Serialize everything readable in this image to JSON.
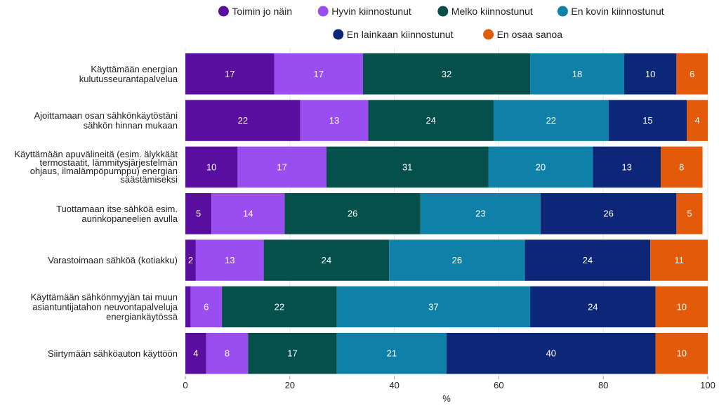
{
  "chart_data": {
    "type": "bar",
    "orientation": "horizontal",
    "stacked": true,
    "title": "",
    "xlabel": "%",
    "ylabel": "",
    "xlim": [
      0,
      100
    ],
    "xticks": [
      0,
      20,
      40,
      60,
      80,
      100
    ],
    "grid": true,
    "legend_position": "top",
    "categories": [
      [
        "Käyttämään energian",
        "kulutusseurantapalvelua"
      ],
      [
        "Ajoittamaan osan sähkönkäytöstäni",
        "sähkön hinnan mukaan"
      ],
      [
        "Käyttämään apuvälineitä (esim. älykkäät",
        "termostaatit, lämmitysjärjestelmän",
        "ohjaus, ilmalämpöpumppu) energian",
        "säästämiseksi"
      ],
      [
        "Tuottamaan itse sähköä esim.",
        "aurinkopaneelien avulla"
      ],
      [
        "Varastoimaan sähköä (kotiakku)"
      ],
      [
        "Käyttämään sähkönmyyjän tai muun",
        "asiantuntijatahon neuvontapalveluja",
        "energiankäytössä"
      ],
      [
        "Siirtymään sähköauton käyttöön"
      ]
    ],
    "series": [
      {
        "name": "Toimin jo näin",
        "color": "#5a0ea0",
        "text_color": "#ffffff",
        "values": [
          17,
          22,
          10,
          5,
          2,
          1,
          4
        ],
        "labels": [
          "17",
          "22",
          "10",
          "5",
          "2",
          "",
          "4"
        ]
      },
      {
        "name": "Hyvin kiinnostunut",
        "color": "#9b4ef0",
        "text_color": "#ffffff",
        "values": [
          17,
          13,
          17,
          14,
          13,
          6,
          8
        ],
        "labels": [
          "17",
          "13",
          "17",
          "14",
          "13",
          "6",
          "8"
        ]
      },
      {
        "name": "Melko kiinnostunut",
        "color": "#06504b",
        "text_color": "#ffffff",
        "values": [
          32,
          24,
          31,
          26,
          24,
          22,
          17
        ],
        "labels": [
          "32",
          "24",
          "31",
          "26",
          "24",
          "22",
          "17"
        ]
      },
      {
        "name": "En kovin kiinnostunut",
        "color": "#0f80a8",
        "text_color": "#ffffff",
        "values": [
          18,
          22,
          20,
          23,
          26,
          37,
          21
        ],
        "labels": [
          "18",
          "22",
          "20",
          "23",
          "26",
          "37",
          "21"
        ]
      },
      {
        "name": "En lainkaan kiinnostunut",
        "color": "#0c2678",
        "text_color": "#ffffff",
        "values": [
          10,
          15,
          13,
          26,
          24,
          24,
          40
        ],
        "labels": [
          "10",
          "15",
          "13",
          "26",
          "24",
          "24",
          "40"
        ]
      },
      {
        "name": "En osaa sanoa",
        "color": "#e35a0a",
        "text_color": "#ffffff",
        "values": [
          6,
          4,
          8,
          5,
          11,
          10,
          10
        ],
        "labels": [
          "6",
          "4",
          "8",
          "5",
          "11",
          "10",
          "10"
        ]
      }
    ]
  }
}
